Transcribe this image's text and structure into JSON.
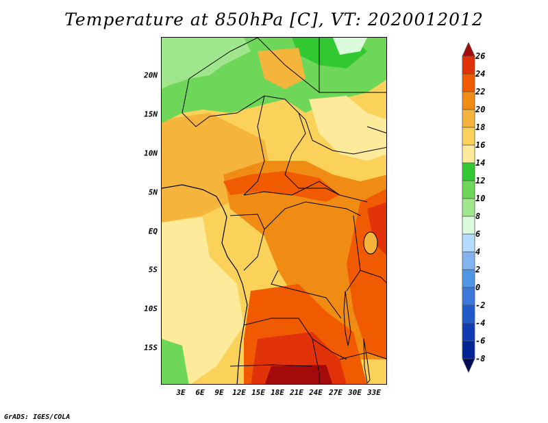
{
  "title": "Temperature at 850hPa [C], VT: 2020012012",
  "credit": "GrADS: IGES/COLA",
  "axes": {
    "lat_labels": [
      "20N",
      "15N",
      "10N",
      "5N",
      "EQ",
      "5S",
      "10S",
      "15S"
    ],
    "lon_labels": [
      "3E",
      "6E",
      "9E",
      "12E",
      "15E",
      "18E",
      "21E",
      "24E",
      "27E",
      "30E",
      "33E"
    ]
  },
  "colorbar": {
    "labels": [
      "26",
      "24",
      "22",
      "20",
      "18",
      "16",
      "14",
      "12",
      "10",
      "8",
      "6",
      "4",
      "2",
      "0",
      "-2",
      "-4",
      "-6",
      "-8"
    ],
    "colors": [
      "#a50a0a",
      "#e1320a",
      "#f05a00",
      "#f08c14",
      "#f5b43c",
      "#fad25a",
      "#fdeb9b",
      "#32c832",
      "#6ed75a",
      "#a0e68c",
      "#dcfadc",
      "#b4dcff",
      "#82b4f0",
      "#5096e6",
      "#3c78dc",
      "#1e5ac8",
      "#0f3cb4",
      "#002396",
      "#000c5a"
    ]
  },
  "map": {
    "region": "Central Africa",
    "lon_range": [
      0,
      35
    ],
    "lat_range": [
      -20,
      24.5
    ]
  }
}
